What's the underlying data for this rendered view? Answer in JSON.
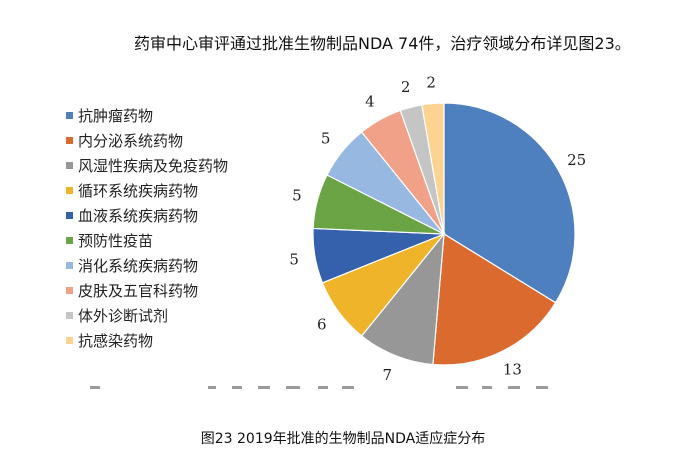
{
  "header": {
    "text": "药审中心审评通过批准生物制品NDA 74件，治疗领域分布详见图23。"
  },
  "caption": "图23 2019年批准的生物制品NDA适应症分布",
  "colors": {
    "抗肿瘤药物": "#4e7fbf",
    "内分泌系统药物": "#db6a2e",
    "风湿性疾病及免疫药物": "#979797",
    "循环系统疾病药物": "#f0b42a",
    "血液系统疾病药物": "#3460ac",
    "预防性疫苗": "#6aa444",
    "消化系统疾病药物": "#97b8e0",
    "皮肤及五官科药物": "#f2a189",
    "体外诊断试剂": "#c5c5c5",
    "抗感染药物": "#fcd391"
  },
  "chart_data": {
    "type": "pie",
    "categories": [
      "抗肿瘤药物",
      "内分泌系统药物",
      "风湿性疾病及免疫药物",
      "循环系统疾病药物",
      "血液系统疾病药物",
      "预防性疫苗",
      "消化系统疾病药物",
      "皮肤及五官科药物",
      "体外诊断试剂",
      "抗感染药物"
    ],
    "values": [
      25,
      13,
      7,
      6,
      5,
      5,
      5,
      4,
      2,
      2
    ],
    "title": "图23 2019年批准的生物制品NDA适应症分布",
    "legend": "left"
  }
}
